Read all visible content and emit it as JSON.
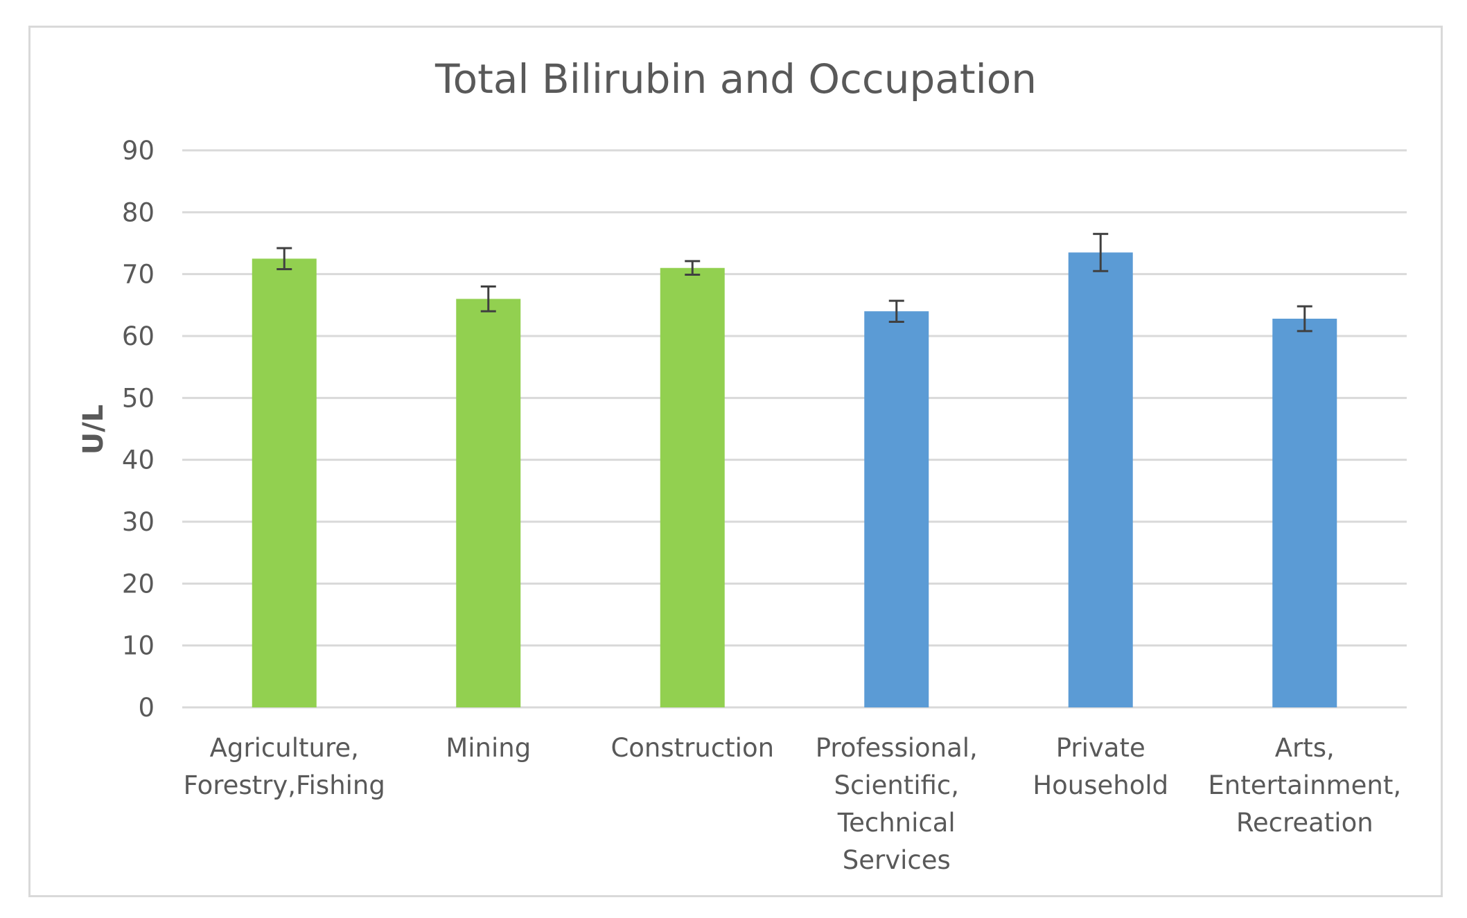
{
  "chart_data": {
    "type": "bar",
    "title": "Total Bilirubin and Occupation",
    "xlabel": "",
    "ylabel": "U/L",
    "ylim": [
      0,
      90
    ],
    "yticks": [
      0,
      10,
      20,
      30,
      40,
      50,
      60,
      70,
      80,
      90
    ],
    "ytick_labels": [
      "0",
      "10",
      "20",
      "30",
      "40",
      "50",
      "60",
      "70",
      "80",
      "90"
    ],
    "grid": true,
    "categories": [
      [
        "Agriculture,",
        "Forestry,Fishing"
      ],
      [
        "Mining"
      ],
      [
        "Construction"
      ],
      [
        "Professional,",
        "Scientific,",
        "Technical",
        "Services"
      ],
      [
        "Private",
        "Household"
      ],
      [
        "Arts,",
        "Entertainment,",
        "Recreation"
      ]
    ],
    "values": [
      72.5,
      66.0,
      71.0,
      64.0,
      73.5,
      62.8
    ],
    "errors": [
      1.7,
      2.0,
      1.1,
      1.7,
      3.0,
      2.0
    ],
    "colors": [
      "#92d050",
      "#92d050",
      "#92d050",
      "#5b9bd5",
      "#5b9bd5",
      "#5b9bd5"
    ]
  }
}
